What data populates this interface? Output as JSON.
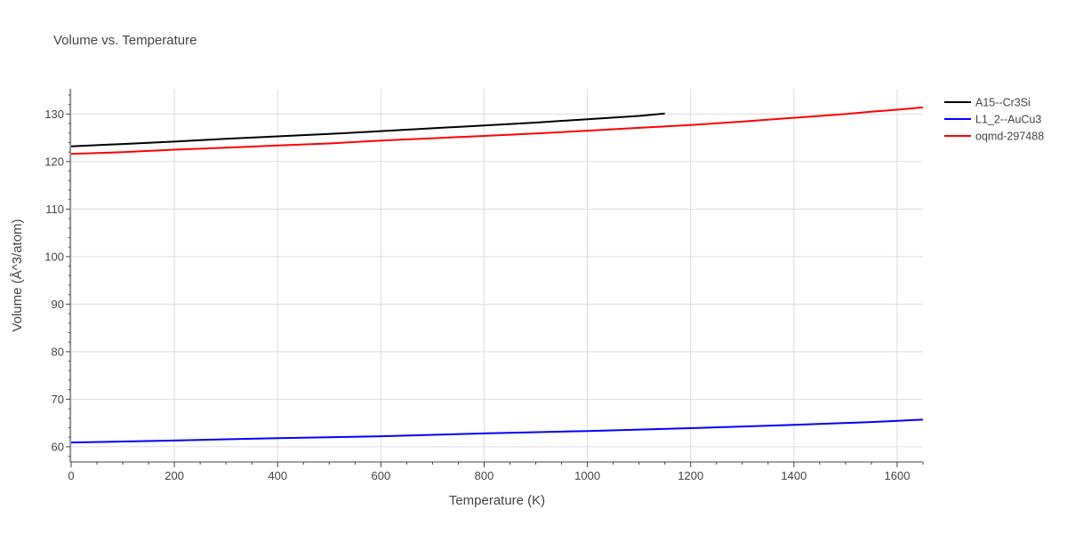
{
  "chart_data": {
    "type": "line",
    "title": "Volume vs. Temperature",
    "xlabel": "Temperature (K)",
    "ylabel": "Volume (Å^3/atom)",
    "xlim": [
      0,
      1650
    ],
    "ylim": [
      56.8,
      135.3
    ],
    "xticks": [
      0,
      200,
      400,
      600,
      800,
      1000,
      1200,
      1400,
      1600
    ],
    "yticks": [
      60,
      70,
      80,
      90,
      100,
      110,
      120,
      130
    ],
    "grid": true,
    "legend_position": "top-right",
    "series": [
      {
        "name": "A15--Cr3Si",
        "color": "#000000",
        "x": [
          0,
          100,
          200,
          300,
          400,
          500,
          600,
          700,
          800,
          900,
          1000,
          1100,
          1150
        ],
        "y": [
          123.2,
          123.7,
          124.2,
          124.8,
          125.3,
          125.8,
          126.4,
          127.0,
          127.6,
          128.2,
          128.9,
          129.6,
          130.1
        ]
      },
      {
        "name": "L1_2--AuCu3",
        "color": "#0000ff",
        "x": [
          0,
          200,
          400,
          600,
          800,
          1000,
          1200,
          1400,
          1550,
          1650
        ],
        "y": [
          60.9,
          61.3,
          61.8,
          62.2,
          62.8,
          63.3,
          63.9,
          64.6,
          65.2,
          65.7
        ]
      },
      {
        "name": "oqmd-297488",
        "color": "#ff0000",
        "x": [
          0,
          100,
          200,
          300,
          400,
          500,
          600,
          700,
          800,
          900,
          1000,
          1100,
          1200,
          1300,
          1400,
          1500,
          1550,
          1600,
          1650
        ],
        "y": [
          121.6,
          122.0,
          122.5,
          122.9,
          123.4,
          123.8,
          124.4,
          124.9,
          125.4,
          125.9,
          126.5,
          127.1,
          127.7,
          128.4,
          129.2,
          130.0,
          130.5,
          130.9,
          131.4
        ]
      }
    ]
  }
}
